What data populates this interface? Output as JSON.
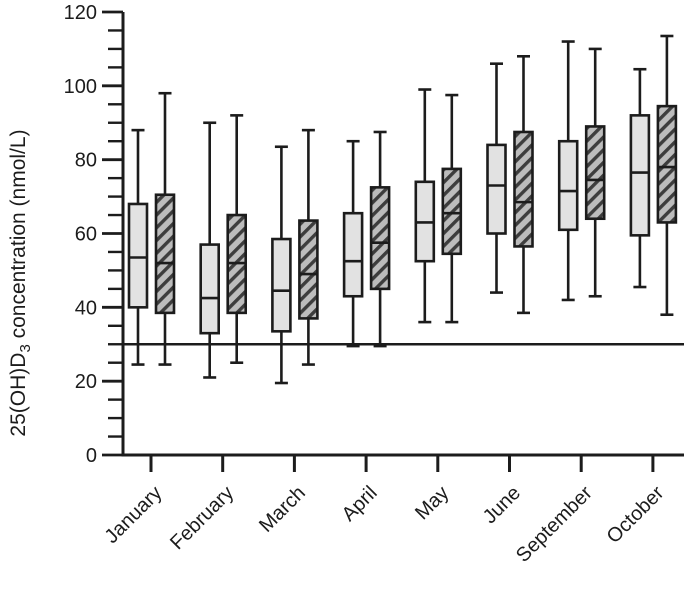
{
  "chart_data": {
    "type": "boxplot",
    "title": "",
    "ylabel": {
      "prefix": "25(OH)D",
      "sub": "3",
      "suffix": " concentration (nmol/L)",
      "full_text": "25(OH)D3 concentration (nmol/L)"
    },
    "xlabel": "",
    "ylim": [
      0,
      120
    ],
    "y_major_ticks": [
      0,
      20,
      40,
      60,
      80,
      100,
      120
    ],
    "y_minor_tick_step": 5,
    "grid": false,
    "legend": "none",
    "reference_line_y": 30,
    "categories": [
      "January",
      "February",
      "March",
      "April",
      "May",
      "June",
      "September",
      "October"
    ],
    "series": [
      {
        "name": "light-boxes",
        "style": "light",
        "boxes": [
          {
            "min": 24.5,
            "q1": 40,
            "median": 53.5,
            "q3": 68,
            "max": 88
          },
          {
            "min": 21,
            "q1": 33,
            "median": 42.5,
            "q3": 57,
            "max": 90
          },
          {
            "min": 19.5,
            "q1": 33.5,
            "median": 44.5,
            "q3": 58.5,
            "max": 83.5
          },
          {
            "min": 29.5,
            "q1": 43,
            "median": 52.5,
            "q3": 65.5,
            "max": 85
          },
          {
            "min": 36,
            "q1": 52.5,
            "median": 63,
            "q3": 74,
            "max": 99
          },
          {
            "min": 44,
            "q1": 60,
            "median": 73,
            "q3": 84,
            "max": 106
          },
          {
            "min": 42,
            "q1": 61,
            "median": 71.5,
            "q3": 85,
            "max": 112
          },
          {
            "min": 45.5,
            "q1": 59.5,
            "median": 76.5,
            "q3": 92,
            "max": 104.5
          }
        ]
      },
      {
        "name": "hatched-boxes",
        "style": "hatched",
        "boxes": [
          {
            "min": 24.5,
            "q1": 38.5,
            "median": 52,
            "q3": 70.5,
            "max": 98
          },
          {
            "min": 25,
            "q1": 38.5,
            "median": 52,
            "q3": 65,
            "max": 92
          },
          {
            "min": 24.5,
            "q1": 37,
            "median": 49,
            "q3": 63.5,
            "max": 88
          },
          {
            "min": 29.5,
            "q1": 45,
            "median": 57.5,
            "q3": 72.5,
            "max": 87.5
          },
          {
            "min": 36,
            "q1": 54.5,
            "median": 65.5,
            "q3": 77.5,
            "max": 97.5
          },
          {
            "min": 38.5,
            "q1": 56.5,
            "median": 68.5,
            "q3": 87.5,
            "max": 108
          },
          {
            "min": 43,
            "q1": 64,
            "median": 74.5,
            "q3": 89,
            "max": 110
          },
          {
            "min": 38,
            "q1": 63,
            "median": 78,
            "q3": 94.5,
            "max": 113.5
          }
        ]
      }
    ],
    "colors": {
      "light_fill": "#e2e2e2",
      "hatched_fill": "#bcbcbc",
      "hatch_stripe": "#3d3d3d",
      "stroke": "#1c1c1c",
      "background": "#ffffff"
    }
  }
}
